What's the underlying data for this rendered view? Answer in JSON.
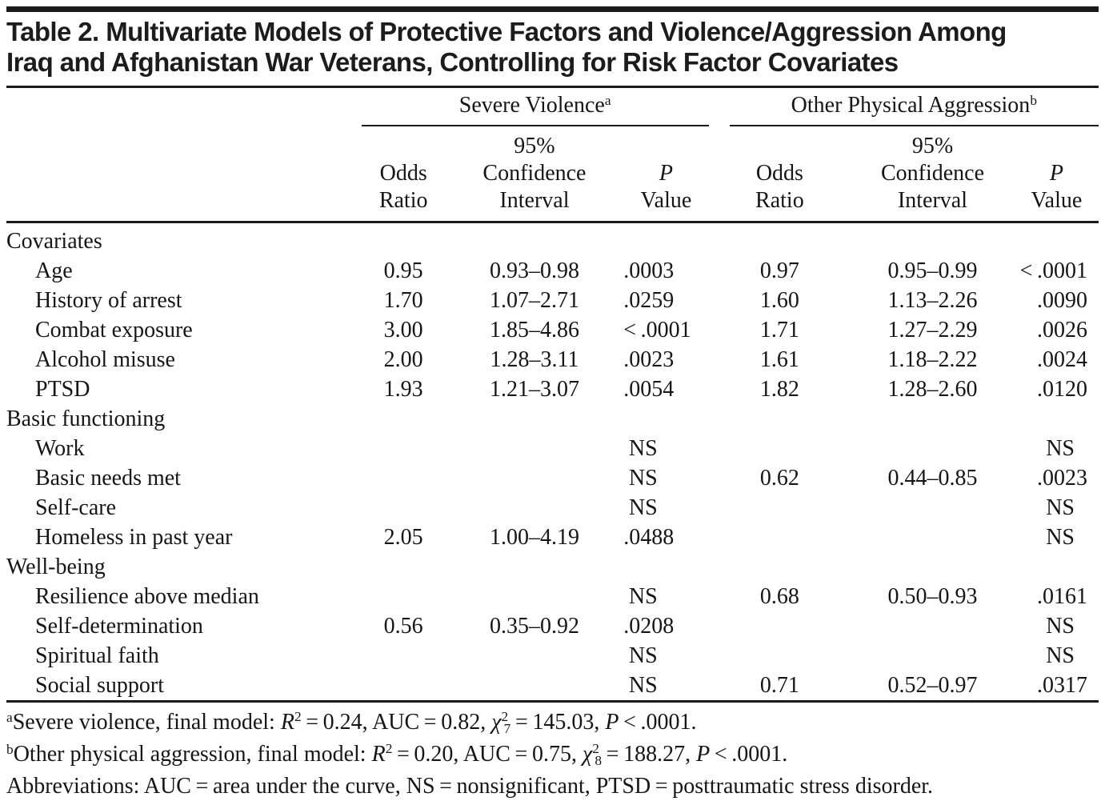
{
  "title": {
    "line1": "Table 2. Multivariate Models of Protective Factors and Violence/Aggression Among",
    "line2": "Iraq and Afghanistan War Veterans, Controlling for Risk Factor Covariates"
  },
  "header": {
    "groups": [
      {
        "title": "Severe Violence",
        "mark": "a"
      },
      {
        "title": "Other Physical Aggression",
        "mark": "b"
      }
    ],
    "sub": {
      "pct": "95%",
      "odds1": "Odds",
      "odds2": "Ratio",
      "ci1": "Confidence",
      "ci2": "Interval",
      "p1": "P",
      "p2": "Value"
    }
  },
  "table": {
    "rows": [
      {
        "label": "Covariates",
        "section": true,
        "cells": [
          "",
          "",
          "",
          "",
          "",
          ""
        ]
      },
      {
        "label": "Age",
        "section": false,
        "cells": [
          "0.95",
          "0.93–0.98",
          ".0003",
          "0.97",
          "0.95–0.99",
          "< .0001"
        ]
      },
      {
        "label": "History of arrest",
        "section": false,
        "cells": [
          "1.70",
          "1.07–2.71",
          ".0259",
          "1.60",
          "1.13–2.26",
          ".0090"
        ]
      },
      {
        "label": "Combat exposure",
        "section": false,
        "cells": [
          "3.00",
          "1.85–4.86",
          "< .0001",
          "1.71",
          "1.27–2.29",
          ".0026"
        ]
      },
      {
        "label": "Alcohol misuse",
        "section": false,
        "cells": [
          "2.00",
          "1.28–3.11",
          ".0023",
          "1.61",
          "1.18–2.22",
          ".0024"
        ]
      },
      {
        "label": "PTSD",
        "section": false,
        "cells": [
          "1.93",
          "1.21–3.07",
          ".0054",
          "1.82",
          "1.28–2.60",
          ".0120"
        ]
      },
      {
        "label": "Basic functioning",
        "section": true,
        "cells": [
          "",
          "",
          "",
          "",
          "",
          ""
        ]
      },
      {
        "label": "Work",
        "section": false,
        "cells": [
          "",
          "",
          "NS",
          "",
          "",
          "NS"
        ]
      },
      {
        "label": "Basic needs met",
        "section": false,
        "cells": [
          "",
          "",
          "NS",
          "0.62",
          "0.44–0.85",
          ".0023"
        ]
      },
      {
        "label": "Self-care",
        "section": false,
        "cells": [
          "",
          "",
          "NS",
          "",
          "",
          "NS"
        ]
      },
      {
        "label": "Homeless in past year",
        "section": false,
        "cells": [
          "2.05",
          "1.00–4.19",
          ".0488",
          "",
          "",
          "NS"
        ]
      },
      {
        "label": "Well-being",
        "section": true,
        "cells": [
          "",
          "",
          "",
          "",
          "",
          ""
        ]
      },
      {
        "label": "Resilience above median",
        "section": false,
        "cells": [
          "",
          "",
          "NS",
          "0.68",
          "0.50–0.93",
          ".0161"
        ]
      },
      {
        "label": "Self-determination",
        "section": false,
        "cells": [
          "0.56",
          "0.35–0.92",
          ".0208",
          "",
          "",
          "NS"
        ]
      },
      {
        "label": "Spiritual faith",
        "section": false,
        "cells": [
          "",
          "",
          "NS",
          "",
          "",
          "NS"
        ]
      },
      {
        "label": "Social support",
        "section": false,
        "cells": [
          "",
          "",
          "NS",
          "0.71",
          "0.52–0.97",
          ".0317"
        ]
      }
    ]
  },
  "footnotes": {
    "a": {
      "mark": "a",
      "t1": "Severe violence, final model: ",
      "r": "R",
      "rsup": "2",
      "t2": " = 0.24, AUC = 0.82, ",
      "chi": "χ",
      "chisup": "2",
      "chisub": "7",
      "t3": " = 145.03, ",
      "p": "P",
      "t4": " < .0001."
    },
    "b": {
      "mark": "b",
      "t1": "Other physical aggression, final model: ",
      "r": "R",
      "rsup": "2",
      "t2": " = 0.20, AUC = 0.75, ",
      "chi": "χ",
      "chisup": "2",
      "chisub": "8",
      "t3": " = 188.27, ",
      "p": "P",
      "t4": " < .0001."
    },
    "abbrev": "Abbreviations: AUC = area under the curve, NS = nonsignificant, PTSD = posttraumatic stress disorder."
  }
}
